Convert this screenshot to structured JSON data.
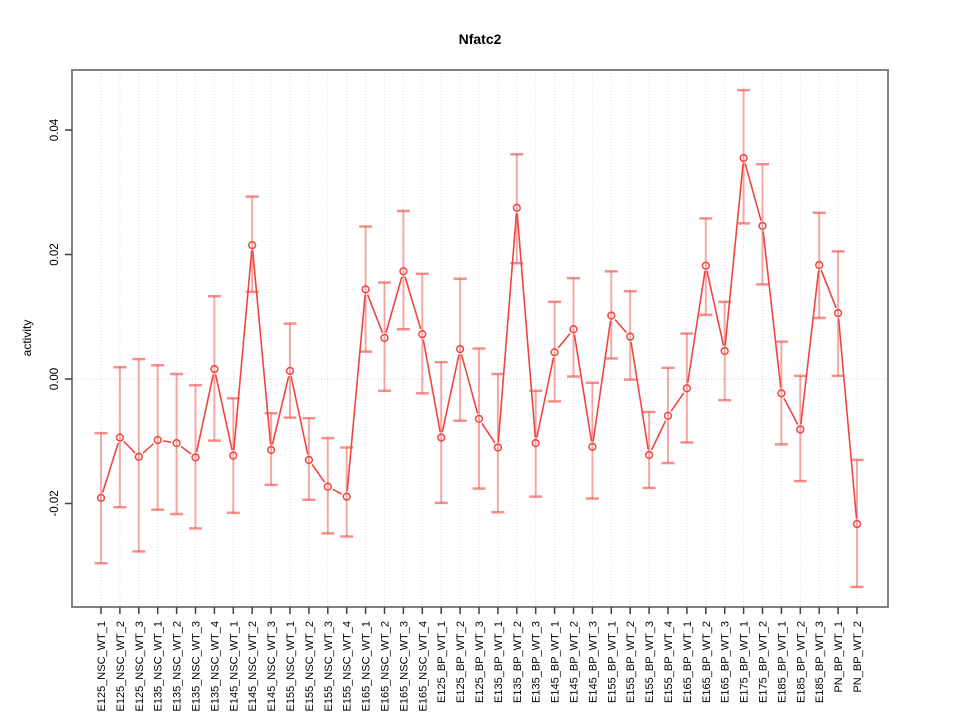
{
  "chart": {
    "title": "Nfatc2",
    "ylabel": "activity"
  },
  "chart_data": {
    "type": "line",
    "title": "Nfatc2",
    "xlabel": "",
    "ylabel": "activity",
    "ylim": [
      -0.0366,
      0.0496
    ],
    "y_ticks": [
      {
        "label": "-0.02",
        "value": -0.02
      },
      {
        "label": "0.00",
        "value": 0.0
      },
      {
        "label": "0.02",
        "value": 0.02
      },
      {
        "label": "0.04",
        "value": 0.04
      }
    ],
    "grid": "dotted vertical gridline at every category; dotted horizontal line at y=0",
    "legend_position": "none",
    "marker": "open-circle",
    "categories": [
      "E125_NSC_WT_1",
      "E125_NSC_WT_2",
      "E125_NSC_WT_3",
      "E135_NSC_WT_1",
      "E135_NSC_WT_2",
      "E135_NSC_WT_3",
      "E135_NSC_WT_4",
      "E145_NSC_WT_1",
      "E145_NSC_WT_2",
      "E145_NSC_WT_3",
      "E155_NSC_WT_1",
      "E155_NSC_WT_2",
      "E155_NSC_WT_3",
      "E155_NSC_WT_4",
      "E165_NSC_WT_1",
      "E165_NSC_WT_2",
      "E165_NSC_WT_3",
      "E165_NSC_WT_4",
      "E125_BP_WT_1",
      "E125_BP_WT_2",
      "E125_BP_WT_3",
      "E135_BP_WT_1",
      "E135_BP_WT_2",
      "E135_BP_WT_3",
      "E145_BP_WT_1",
      "E145_BP_WT_2",
      "E145_BP_WT_3",
      "E155_BP_WT_1",
      "E155_BP_WT_2",
      "E155_BP_WT_3",
      "E155_BP_WT_4",
      "E165_BP_WT_1",
      "E165_BP_WT_2",
      "E165_BP_WT_3",
      "E175_BP_WT_1",
      "E175_BP_WT_2",
      "E185_BP_WT_1",
      "E185_BP_WT_2",
      "E185_BP_WT_3",
      "PN_BP_WT_1",
      "PN_BP_WT_2"
    ],
    "series": [
      {
        "name": "activity",
        "values": [
          -0.0191,
          -0.0094,
          -0.0125,
          -0.0098,
          -0.0103,
          -0.0126,
          0.0016,
          -0.0123,
          0.0215,
          -0.0114,
          0.0013,
          -0.013,
          -0.0173,
          -0.0189,
          0.0144,
          0.0066,
          0.0173,
          0.0072,
          -0.0094,
          0.0048,
          -0.0064,
          -0.011,
          0.0275,
          -0.0103,
          0.0043,
          0.008,
          -0.0109,
          0.0102,
          0.0068,
          -0.0122,
          -0.0059,
          -0.0015,
          0.0182,
          0.0045,
          0.0355,
          0.0246,
          -0.0023,
          -0.0081,
          0.0183,
          0.0106,
          -0.0233
        ],
        "error_high": [
          -0.0087,
          0.0019,
          0.0032,
          0.0022,
          0.0008,
          -0.001,
          0.0133,
          -0.0031,
          0.0293,
          -0.0055,
          0.0089,
          -0.0063,
          -0.0095,
          -0.011,
          0.0245,
          0.0155,
          0.027,
          0.0169,
          0.0027,
          0.0161,
          0.0049,
          0.0008,
          0.0361,
          -0.0019,
          0.0124,
          0.0162,
          -0.0006,
          0.0173,
          0.0141,
          -0.0053,
          0.0018,
          0.0073,
          0.0258,
          0.0124,
          0.0464,
          0.0345,
          0.006,
          0.0005,
          0.0267,
          0.0205,
          -0.013
        ],
        "error_low": [
          -0.0296,
          -0.0206,
          -0.0277,
          -0.021,
          -0.0217,
          -0.024,
          -0.0099,
          -0.0215,
          0.014,
          -0.017,
          -0.0062,
          -0.0194,
          -0.0248,
          -0.0253,
          0.0044,
          -0.0019,
          0.008,
          -0.0023,
          -0.0199,
          -0.0067,
          -0.0176,
          -0.0214,
          0.0186,
          -0.0189,
          -0.0036,
          0.0004,
          -0.0192,
          0.0033,
          -0.0001,
          -0.0175,
          -0.0135,
          -0.0102,
          0.0103,
          -0.0034,
          0.025,
          0.0152,
          -0.0105,
          -0.0164,
          0.0098,
          0.0005,
          -0.0334
        ]
      }
    ],
    "style": {
      "line_color": "#f04540",
      "marker_color": "#f04540",
      "error_bar_color": "rgba(240,69,64,0.45)",
      "error_cap_color": "rgba(240,69,64,0.60)",
      "grid_color": "#dcdcdc",
      "zero_line_color": "#d6d6d6",
      "frame_color": "#828282",
      "tick_color": "#404040",
      "text_color": "#000000",
      "background": "#ffffff"
    }
  }
}
